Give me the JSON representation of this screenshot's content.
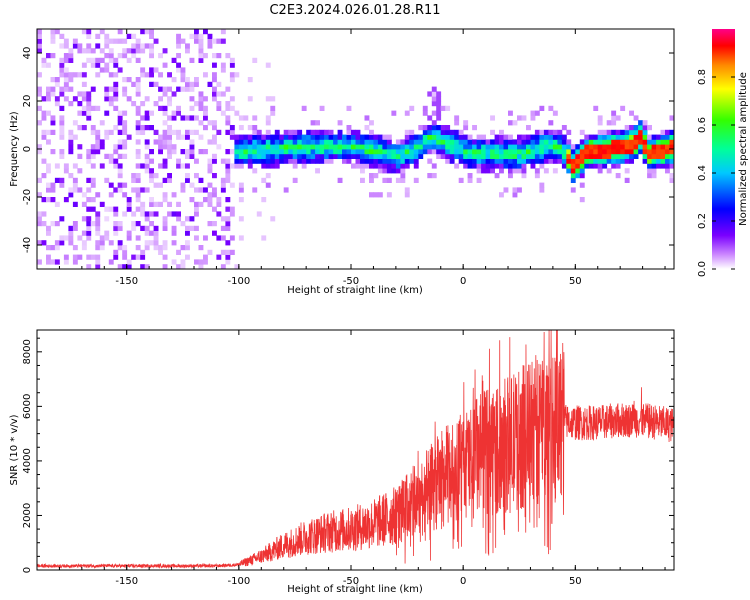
{
  "title": "C2E3.2024.026.01.28.R11",
  "chart_data": [
    {
      "type": "heatmap",
      "xlabel": "Height of straight line (km)",
      "ylabel": "Frequency (Hz)",
      "xlim": [
        -190,
        94
      ],
      "ylim": [
        -50,
        50
      ],
      "x_ticks": [
        -150,
        -100,
        -50,
        0,
        50
      ],
      "y_ticks": [
        -40,
        -20,
        0,
        20,
        40
      ],
      "colorbar": {
        "label": "Normalized spectral amplitude",
        "range": [
          0,
          1
        ],
        "ticks": [
          0.0,
          0.2,
          0.4,
          0.6,
          0.8
        ]
      },
      "band_center": [
        {
          "x": -100,
          "y": -2
        },
        {
          "x": -75,
          "y": 0
        },
        {
          "x": -50,
          "y": 0
        },
        {
          "x": -30,
          "y": -4
        },
        {
          "x": -20,
          "y": 0
        },
        {
          "x": -15,
          "y": 5
        },
        {
          "x": -10,
          "y": 2
        },
        {
          "x": -5,
          "y": 0
        },
        {
          "x": 0,
          "y": -2
        },
        {
          "x": 10,
          "y": -3
        },
        {
          "x": 25,
          "y": -3
        },
        {
          "x": 35,
          "y": 0
        },
        {
          "x": 42,
          "y": 0
        },
        {
          "x": 46,
          "y": -5
        },
        {
          "x": 48,
          "y": -8
        },
        {
          "x": 55,
          "y": -2
        },
        {
          "x": 65,
          "y": -1
        },
        {
          "x": 75,
          "y": 1
        },
        {
          "x": 78,
          "y": 4
        },
        {
          "x": 82,
          "y": -3
        },
        {
          "x": 94,
          "y": 0
        }
      ]
    },
    {
      "type": "line",
      "xlabel": "Height of straight line (km)",
      "ylabel": "SNR (10 * v/v)",
      "xlim": [
        -190,
        94
      ],
      "ylim": [
        0,
        8800
      ],
      "x_ticks": [
        -150,
        -100,
        -50,
        0,
        50
      ],
      "y_ticks": [
        0,
        2000,
        4000,
        6000,
        8000
      ],
      "envelope": [
        {
          "x": -190,
          "y": 150
        },
        {
          "x": -110,
          "y": 150
        },
        {
          "x": -100,
          "y": 200
        },
        {
          "x": -90,
          "y": 500
        },
        {
          "x": -80,
          "y": 900
        },
        {
          "x": -70,
          "y": 1200
        },
        {
          "x": -60,
          "y": 1400
        },
        {
          "x": -50,
          "y": 1500
        },
        {
          "x": -40,
          "y": 1700
        },
        {
          "x": -30,
          "y": 2000
        },
        {
          "x": -20,
          "y": 2600
        },
        {
          "x": -10,
          "y": 3300
        },
        {
          "x": 0,
          "y": 3800
        },
        {
          "x": 10,
          "y": 4300
        },
        {
          "x": 20,
          "y": 4600
        },
        {
          "x": 30,
          "y": 5000
        },
        {
          "x": 40,
          "y": 5500
        },
        {
          "x": 50,
          "y": 5400
        },
        {
          "x": 60,
          "y": 5400
        },
        {
          "x": 70,
          "y": 5500
        },
        {
          "x": 80,
          "y": 5500
        },
        {
          "x": 94,
          "y": 5300
        }
      ],
      "color": "#ee3333"
    }
  ]
}
